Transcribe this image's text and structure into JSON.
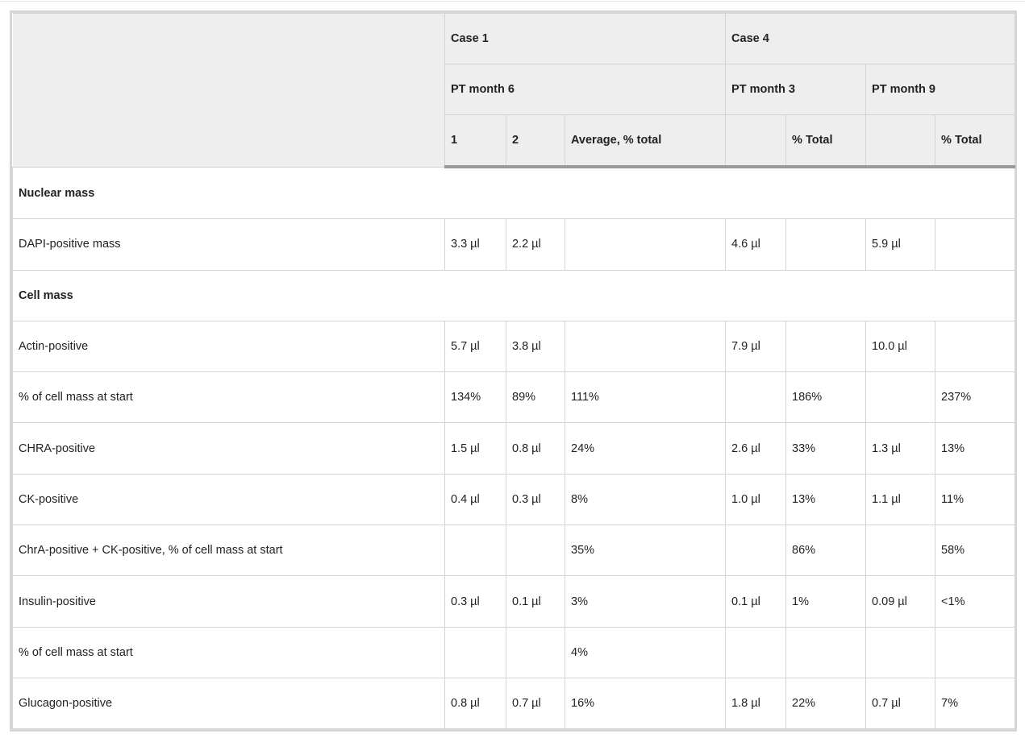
{
  "header": {
    "case1": "Case 1",
    "case4": "Case 4",
    "pt_month6": "PT month 6",
    "pt_month3": "PT month 3",
    "pt_month9": "PT month 9",
    "col_1": "1",
    "col_2": "2",
    "col_avg": "Average, % total",
    "col_total_a": "% Total",
    "col_total_b": "% Total"
  },
  "rows": [
    {
      "section": "Nuclear mass"
    },
    {
      "label": "DAPI-positive mass",
      "cells": [
        "3.3 µl",
        "2.2 µl",
        "",
        "4.6 µl",
        "",
        "5.9 µl",
        ""
      ]
    },
    {
      "section": "Cell mass"
    },
    {
      "label": "Actin-positive",
      "cells": [
        "5.7 µl",
        "3.8 µl",
        "",
        "7.9 µl",
        "",
        "10.0 µl",
        ""
      ]
    },
    {
      "label": "% of cell mass at start",
      "cells": [
        "134%",
        "89%",
        "111%",
        "",
        "186%",
        "",
        "237%"
      ]
    },
    {
      "label": "CHRA-positive",
      "cells": [
        "1.5 µl",
        "0.8 µl",
        "24%",
        "2.6 µl",
        "33%",
        "1.3 µl",
        "13%"
      ]
    },
    {
      "label": "CK-positive",
      "cells": [
        "0.4 µl",
        "0.3 µl",
        "8%",
        "1.0 µl",
        "13%",
        "1.1 µl",
        "11%"
      ]
    },
    {
      "label": "ChrA-positive + CK-positive, % of cell mass at start",
      "cells": [
        "",
        "",
        "35%",
        "",
        "86%",
        "",
        "58%"
      ]
    },
    {
      "label": "Insulin-positive",
      "cells": [
        "0.3 µl",
        "0.1 µl",
        "3%",
        "0.1 µl",
        "1%",
        "0.09 µl",
        "<1%"
      ]
    },
    {
      "label": "% of cell mass at start",
      "cells": [
        "",
        "",
        "4%",
        "",
        "",
        "",
        ""
      ]
    },
    {
      "label": "Glucagon-positive",
      "cells": [
        "0.8 µl",
        "0.7 µl",
        "16%",
        "1.8 µl",
        "22%",
        "0.7 µl",
        "7%"
      ]
    }
  ]
}
